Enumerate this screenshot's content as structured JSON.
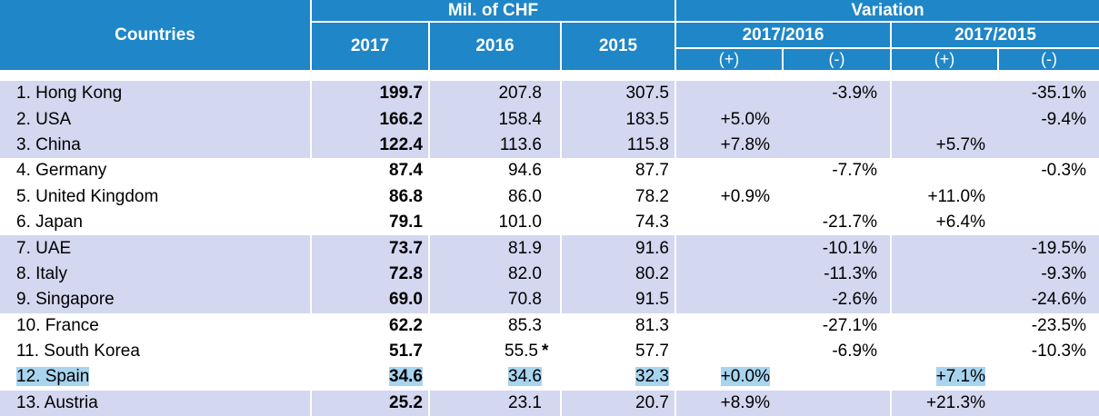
{
  "header": {
    "countries": "Countries",
    "mil_chf": "Mil. of CHF",
    "variation": "Variation",
    "y2017": "2017",
    "y2016": "2016",
    "y2015": "2015",
    "p1716": "2017/2016",
    "p1715": "2017/2015",
    "plus": "(+)",
    "minus": "(-)"
  },
  "rows": [
    {
      "country": "1. Hong Kong",
      "v2017": "199.7",
      "v2016": "207.8",
      "mark": "",
      "v2015": "307.5",
      "p16": "",
      "m16": "-3.9%",
      "p15": "",
      "m15": "-35.1%"
    },
    {
      "country": "2. USA",
      "v2017": "166.2",
      "v2016": "158.4",
      "mark": "",
      "v2015": "183.5",
      "p16": "+5.0%",
      "m16": "",
      "p15": "",
      "m15": "-9.4%"
    },
    {
      "country": "3. China",
      "v2017": "122.4",
      "v2016": "113.6",
      "mark": "",
      "v2015": "115.8",
      "p16": "+7.8%",
      "m16": "",
      "p15": "+5.7%",
      "m15": ""
    },
    {
      "country": "4. Germany",
      "v2017": "87.4",
      "v2016": "94.6",
      "mark": "",
      "v2015": "87.7",
      "p16": "",
      "m16": "-7.7%",
      "p15": "",
      "m15": "-0.3%"
    },
    {
      "country": "5. United Kingdom",
      "v2017": "86.8",
      "v2016": "86.0",
      "mark": "",
      "v2015": "78.2",
      "p16": "+0.9%",
      "m16": "",
      "p15": "+11.0%",
      "m15": ""
    },
    {
      "country": "6. Japan",
      "v2017": "79.1",
      "v2016": "101.0",
      "mark": "",
      "v2015": "74.3",
      "p16": "",
      "m16": "-21.7%",
      "p15": "+6.4%",
      "m15": ""
    },
    {
      "country": "7. UAE",
      "v2017": "73.7",
      "v2016": "81.9",
      "mark": "",
      "v2015": "91.6",
      "p16": "",
      "m16": "-10.1%",
      "p15": "",
      "m15": "-19.5%"
    },
    {
      "country": "8. Italy",
      "v2017": "72.8",
      "v2016": "82.0",
      "mark": "",
      "v2015": "80.2",
      "p16": "",
      "m16": "-11.3%",
      "p15": "",
      "m15": "-9.3%"
    },
    {
      "country": "9. Singapore",
      "v2017": "69.0",
      "v2016": "70.8",
      "mark": "",
      "v2015": "91.5",
      "p16": "",
      "m16": "-2.6%",
      "p15": "",
      "m15": "-24.6%"
    },
    {
      "country": "10. France",
      "v2017": "62.2",
      "v2016": "85.3",
      "mark": "",
      "v2015": "81.3",
      "p16": "",
      "m16": "-27.1%",
      "p15": "",
      "m15": "-23.5%"
    },
    {
      "country": "11. South Korea",
      "v2017": "51.7",
      "v2016": "55.5",
      "mark": "*",
      "v2015": "57.7",
      "p16": "",
      "m16": "-6.9%",
      "p15": "",
      "m15": "-10.3%"
    },
    {
      "country": "12. Spain",
      "v2017": "34.6",
      "v2016": "34.6",
      "mark": "",
      "v2015": "32.3",
      "p16": "+0.0%",
      "m16": "",
      "p15": "+7.1%",
      "m15": ""
    },
    {
      "country": "13. Austria",
      "v2017": "25.2",
      "v2016": "23.1",
      "mark": "",
      "v2015": "20.7",
      "p16": "+8.9%",
      "m16": "",
      "p15": "+21.3%",
      "m15": ""
    }
  ],
  "colors": {
    "header": "#1f86c7",
    "band": "#d3d7ef",
    "highlight": "#a8d4ee"
  }
}
